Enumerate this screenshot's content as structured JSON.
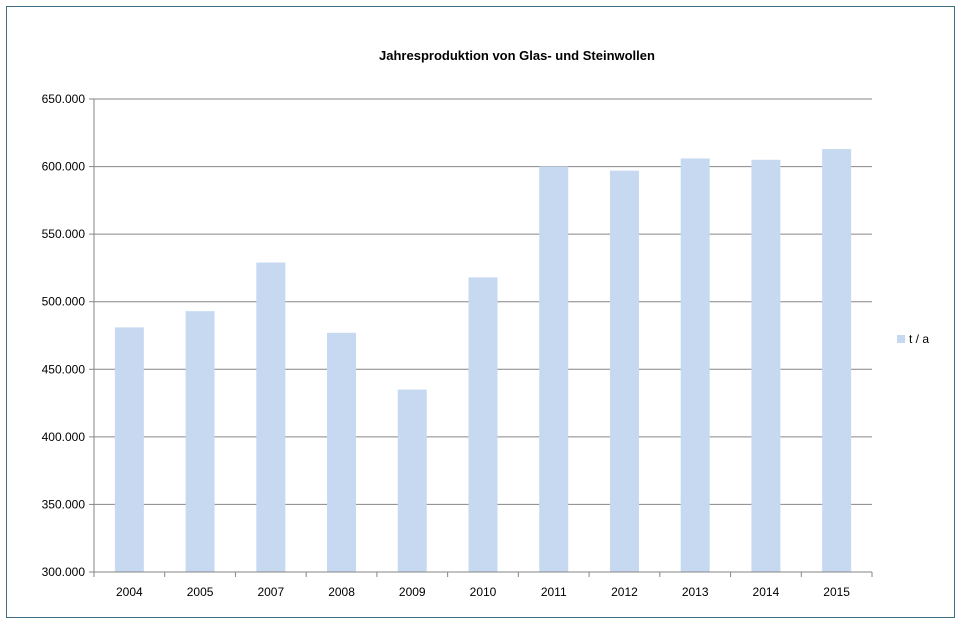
{
  "chart_data": {
    "type": "bar",
    "title": "Jahresproduktion von Glas- und Steinwollen",
    "xlabel": "",
    "ylabel": "",
    "categories": [
      "2004",
      "2005",
      "2007",
      "2008",
      "2009",
      "2010",
      "2011",
      "2012",
      "2013",
      "2014",
      "2015"
    ],
    "series": [
      {
        "name": "t / a",
        "values": [
          481000,
          493000,
          529000,
          477000,
          435000,
          518000,
          600000,
          597000,
          606000,
          605000,
          613000
        ],
        "color": "#c6d9f1"
      }
    ],
    "ylim": [
      300000,
      650000
    ],
    "yticks": [
      300000,
      350000,
      400000,
      450000,
      500000,
      550000,
      600000,
      650000
    ],
    "ytick_labels": [
      "300.000",
      "350.000",
      "400.000",
      "450.000",
      "500.000",
      "550.000",
      "600.000",
      "650.000"
    ],
    "grid": true,
    "legend_position": "right",
    "colors": {
      "grid": "#868686",
      "axis": "#868686",
      "border": "#3f6d80"
    }
  }
}
